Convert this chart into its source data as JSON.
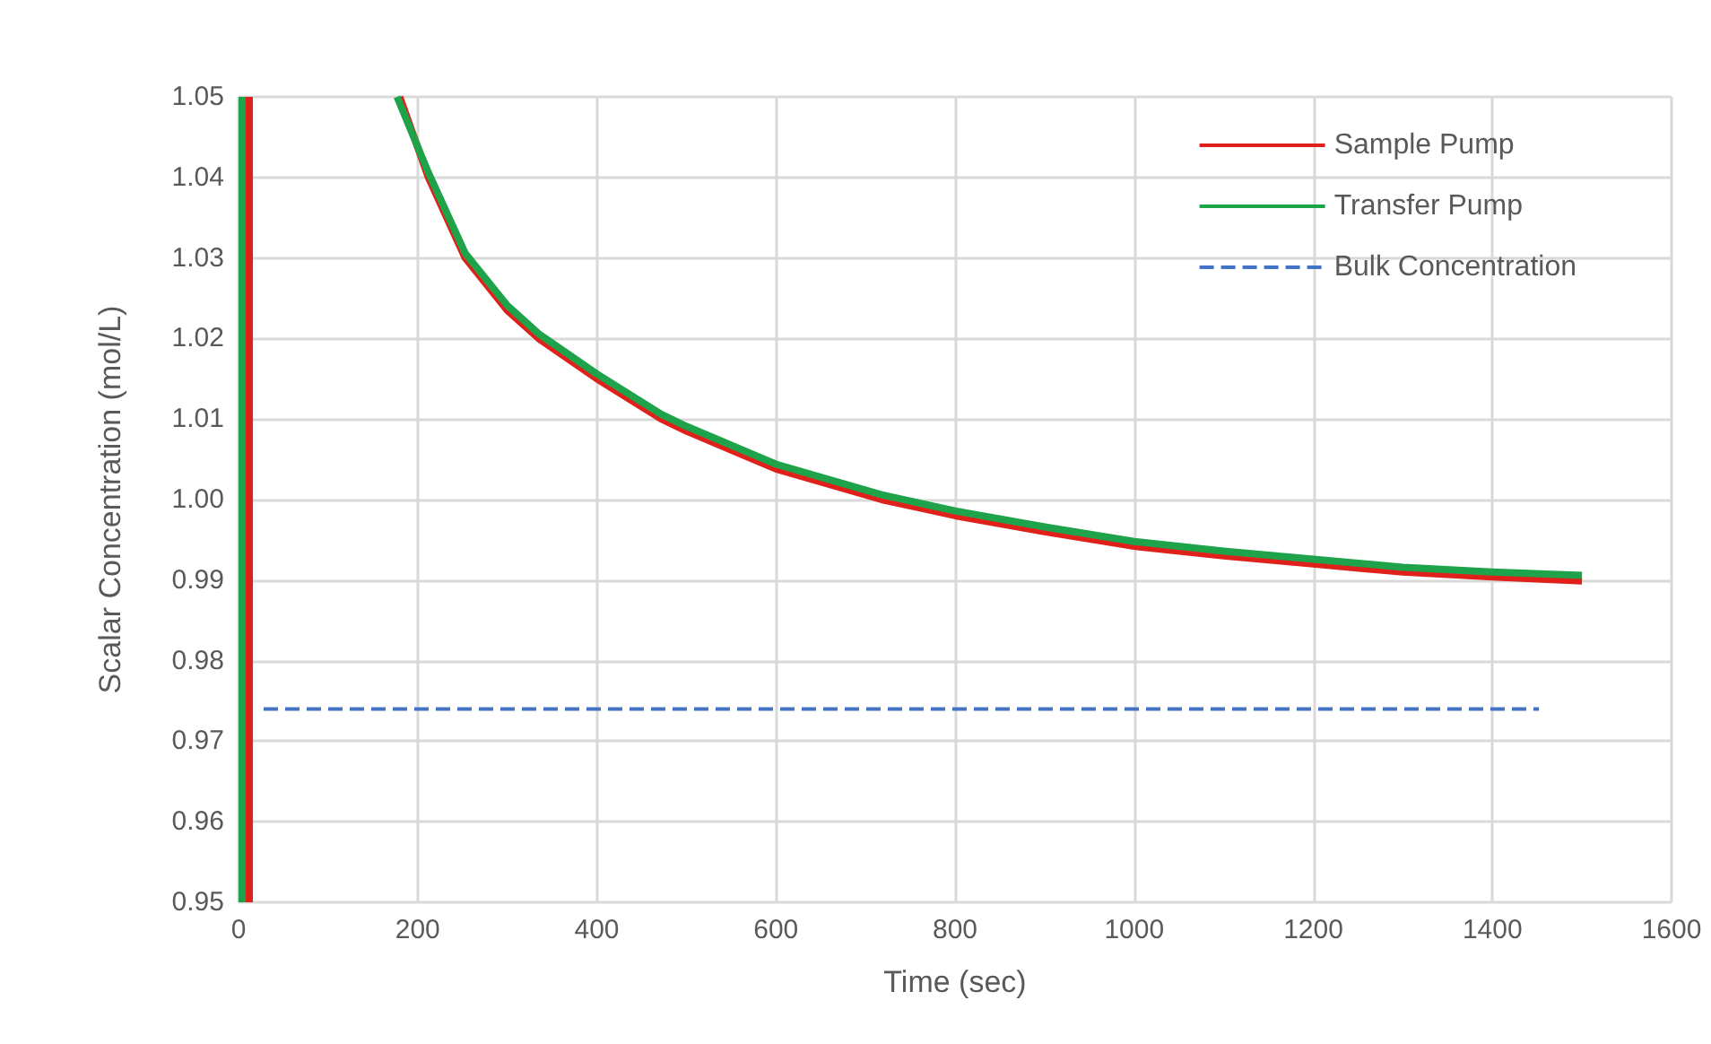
{
  "chart_data": {
    "type": "line",
    "xlabel": "Time (sec)",
    "ylabel": "Scalar Concentration (mol/L)",
    "xlim": [
      0,
      1600
    ],
    "xticks": [
      0,
      200,
      400,
      600,
      800,
      1000,
      1200,
      1400,
      1600
    ],
    "ylim": [
      0.95,
      1.05
    ],
    "yticks": [
      {
        "value": 0.95,
        "label": "0.95"
      },
      {
        "value": 0.96,
        "label": "0.96"
      },
      {
        "value": 0.97,
        "label": "0.97"
      },
      {
        "value": 0.98,
        "label": "0.98"
      },
      {
        "value": 0.99,
        "label": "0.99"
      },
      {
        "value": 1.0,
        "label": "1.00"
      },
      {
        "value": 1.01,
        "label": "1.01"
      },
      {
        "value": 1.02,
        "label": "1.02"
      },
      {
        "value": 1.03,
        "label": "1.03"
      },
      {
        "value": 1.04,
        "label": "1.04"
      },
      {
        "value": 1.05,
        "label": "1.05"
      }
    ],
    "grid": true,
    "legend": "top right",
    "marker": "none",
    "series": [
      {
        "name": "Sample Pump",
        "color": "#e0201b",
        "line_style": "solid",
        "x": [
          12,
          12,
          100,
          180,
          212,
          253,
          300,
          335,
          400,
          472,
          500,
          600,
          718,
          800,
          900,
          1000,
          1100,
          1200,
          1300,
          1400,
          1500
        ],
        "values": [
          0.95,
          1.05,
          null,
          1.05,
          1.04,
          1.03,
          1.0235,
          1.02,
          1.015,
          1.01,
          1.0085,
          1.0038,
          1.0,
          0.998,
          0.996,
          0.9942,
          0.993,
          0.992,
          0.991,
          0.9904,
          0.9899
        ]
      },
      {
        "name": "Transfer Pump",
        "color": "#1fa34a",
        "line_style": "solid",
        "x": [
          4,
          4,
          100,
          177,
          212,
          253,
          300,
          335,
          400,
          472,
          500,
          600,
          718,
          800,
          900,
          1000,
          1100,
          1200,
          1300,
          1400,
          1500
        ],
        "values": [
          0.95,
          1.05,
          null,
          1.05,
          1.0406,
          1.0306,
          1.0241,
          1.0206,
          1.0156,
          1.0106,
          1.0091,
          1.0044,
          1.0006,
          0.9986,
          0.9966,
          0.9948,
          0.9936,
          0.9926,
          0.9916,
          0.991,
          0.9906
        ]
      },
      {
        "name": "Bulk Concentration",
        "color": "#4472c4",
        "line_style": "dashed",
        "x": [
          28,
          1452
        ],
        "values": [
          0.974,
          0.974
        ]
      }
    ]
  }
}
